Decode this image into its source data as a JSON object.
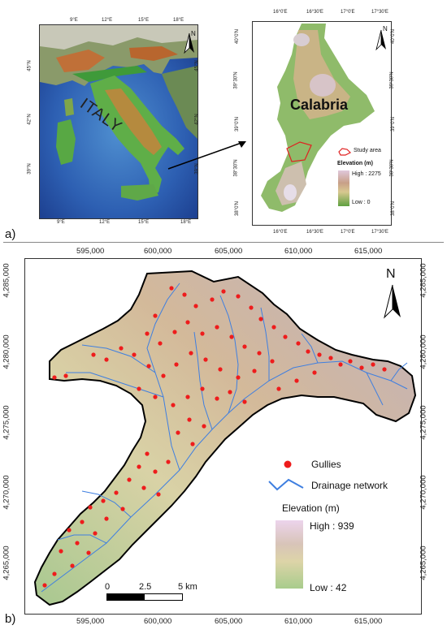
{
  "panel_a": {
    "label": "a)",
    "italy_map": {
      "country_label": "ITALY",
      "north_label": "N",
      "top_ticks": [
        "9°E",
        "12°E",
        "15°E",
        "18°E"
      ],
      "bottom_ticks": [
        "9°E",
        "12°E",
        "15°E",
        "18°E"
      ],
      "left_ticks": [
        "45°N",
        "42°N",
        "39°N"
      ],
      "right_ticks": [
        "45°N",
        "42°N",
        "39°N"
      ]
    },
    "calabria_map": {
      "region_label": "Calabria",
      "north_label": "N",
      "top_ticks": [
        "16°0'E",
        "16°30'E",
        "17°0'E",
        "17°30'E"
      ],
      "bottom_ticks": [
        "16°0'E",
        "16°30'E",
        "17°0'E",
        "17°30'E"
      ],
      "left_ticks": [
        "40°0'N",
        "39°30'N",
        "39°0'N",
        "38°30'N",
        "38°0'N"
      ],
      "right_ticks": [
        "40°0'N",
        "39°30'N",
        "39°0'N",
        "38°30'N",
        "38°0'N"
      ],
      "legend": {
        "study_area": "Study area",
        "title": "Elevation (m)",
        "high": "High : 2275",
        "low": "Low : 0"
      }
    }
  },
  "panel_b": {
    "label": "b)",
    "north_label": "N",
    "top_ticks": [
      "595,000",
      "600,000",
      "605,000",
      "610,000",
      "615,000"
    ],
    "bottom_ticks": [
      "595,000",
      "600,000",
      "605,000",
      "610,000",
      "615,000"
    ],
    "left_ticks": [
      "4,285,000",
      "4,280,000",
      "4,275,000",
      "4,270,000",
      "4,265,000"
    ],
    "right_ticks": [
      "4,285,000",
      "4,280,000",
      "4,275,000",
      "4,270,000",
      "4,265,000"
    ],
    "legend": {
      "gullies": "Gullies",
      "drainage": "Drainage network",
      "title": "Elevation (m)",
      "high": "High : 939",
      "low": "Low : 42"
    },
    "scale_bar": {
      "zero": "0",
      "mid": "2.5",
      "end": "5 km"
    },
    "colors": {
      "gully": "#ee1c1c",
      "drainage": "#3f7fe0"
    }
  }
}
